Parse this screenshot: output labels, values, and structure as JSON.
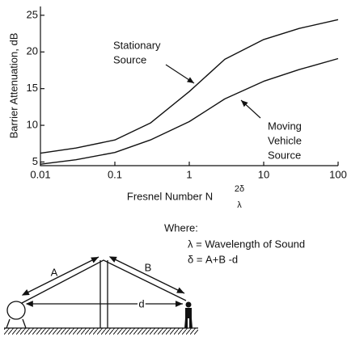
{
  "chart_data": {
    "type": "line",
    "ylabel": "Barrier Attenuation, dB",
    "xlabel": "Fresnel Number N",
    "xlabel_formula": {
      "numerator": "2δ",
      "denominator": "λ"
    },
    "x": [
      0.01,
      0.03,
      0.1,
      0.3,
      1,
      3,
      10,
      30,
      100
    ],
    "series": [
      {
        "color": "#111111",
        "values": [
          6.2,
          6.9,
          8,
          10.3,
          14.6,
          19,
          21.7,
          23.2,
          24.4
        ]
      },
      {
        "color": "#111111",
        "values": [
          4.7,
          5.3,
          6.3,
          8,
          10.5,
          13.6,
          16,
          17.6,
          19.1
        ]
      }
    ],
    "xscale": "log",
    "xlim": [
      0.01,
      100
    ],
    "xticks": [
      0.01,
      0.1,
      1,
      10,
      100
    ],
    "ylim": [
      4.5,
      26.2
    ],
    "yticks": [
      5,
      10,
      15,
      20,
      25
    ],
    "annotations": [
      {
        "lines": [
          "Stationary",
          "Source"
        ]
      },
      {
        "lines": [
          "Moving",
          "Vehicle",
          "Source"
        ]
      }
    ]
  },
  "diagram": {
    "where": "Where:",
    "lambda_def": "λ = Wavelength of Sound",
    "delta_def": "δ = A+B -d",
    "labels": {
      "a": "A",
      "b": "B",
      "d": "d"
    }
  }
}
